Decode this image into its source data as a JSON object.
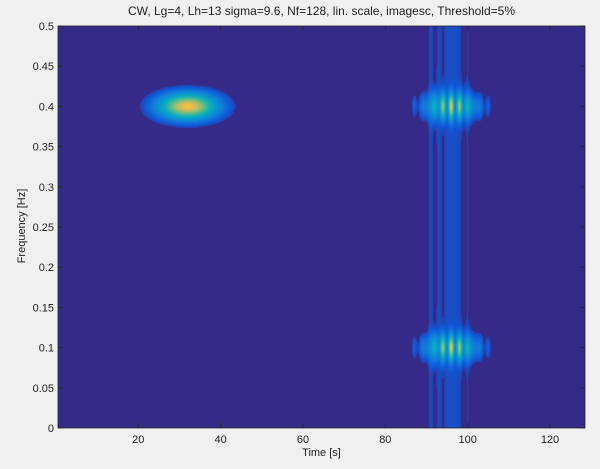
{
  "chart_data": {
    "type": "heatmap",
    "title": "CW, Lg=4, Lh=13 sigma=9.6, Nf=128, lin. scale, imagesc, Threshold=5%",
    "xlabel": "Time [s]",
    "ylabel": "Frequency [Hz]",
    "xlim": [
      0.5,
      128.5
    ],
    "ylim": [
      0,
      0.5
    ],
    "xticks": [
      20,
      40,
      60,
      80,
      100,
      120
    ],
    "yticks": [
      0,
      0.05,
      0.1,
      0.15,
      0.2,
      0.25,
      0.3,
      0.35,
      0.4,
      0.45,
      0.5
    ],
    "ytick_labels": [
      "0",
      "0.05",
      "0.1",
      "0.15",
      "0.2",
      "0.25",
      "0.3",
      "0.35",
      "0.4",
      "0.45",
      "0.5"
    ],
    "colormap": "parula",
    "grid": false,
    "components": [
      {
        "kind": "gaussian",
        "time": 32,
        "frequency": 0.4,
        "time_spread": 4.8,
        "frequency_spread": 0.011,
        "amplitude": 1.0
      },
      {
        "kind": "pulse-cluster",
        "time": 96,
        "frequency": 0.4,
        "time_spread": 4.5,
        "frequency_spread": 0.011,
        "amplitude": 1.0,
        "fringe_period": 2.2
      },
      {
        "kind": "pulse-cluster",
        "time": 96,
        "frequency": 0.1,
        "time_spread": 4.5,
        "frequency_spread": 0.011,
        "amplitude": 1.0,
        "fringe_period": 2.2
      },
      {
        "kind": "vertical-lines",
        "times": [
          91,
          92.7,
          94.6,
          96.5,
          98.4,
          100.3
        ],
        "amplitudes": [
          0.25,
          0.3,
          0.35,
          0.45,
          0.3,
          0.22
        ]
      }
    ]
  }
}
